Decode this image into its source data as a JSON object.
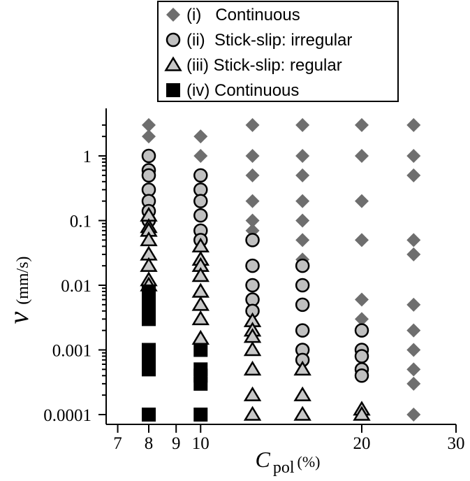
{
  "chart_data": {
    "type": "scatter",
    "title": "",
    "xlabel": {
      "symbol": "C",
      "subscript": "pol",
      "unit": "(%)"
    },
    "ylabel": {
      "symbol": "v",
      "unit": "(mm/s)"
    },
    "xscale": "log",
    "yscale": "log",
    "xlim": [
      6.5,
      30
    ],
    "ylim": [
      0.0001,
      3
    ],
    "grid": false,
    "legend_position": "top-center",
    "x_ticks": [
      {
        "value": 7,
        "label": "7"
      },
      {
        "value": 8,
        "label": "8"
      },
      {
        "value": 9,
        "label": "9"
      },
      {
        "value": 10,
        "label": "10"
      },
      {
        "value": 20,
        "label": "20"
      },
      {
        "value": 30,
        "label": "30"
      }
    ],
    "y_ticks": [
      {
        "value": 1,
        "label": "1"
      },
      {
        "value": 0.1,
        "label": "0.1"
      },
      {
        "value": 0.01,
        "label": "0.01"
      },
      {
        "value": 0.001,
        "label": "0.001"
      },
      {
        "value": 0.0001,
        "label": "0.0001"
      }
    ],
    "series": [
      {
        "name": "(i)   Continuous",
        "marker": "diamond",
        "color": "#6e6e6e",
        "points": [
          [
            8,
            3
          ],
          [
            8,
            2
          ],
          [
            10,
            2
          ],
          [
            10,
            1
          ],
          [
            10,
            0.5
          ],
          [
            12.5,
            3
          ],
          [
            12.5,
            1
          ],
          [
            12.5,
            0.5
          ],
          [
            12.5,
            0.2
          ],
          [
            12.5,
            0.1
          ],
          [
            12.5,
            0.07
          ],
          [
            15.5,
            3
          ],
          [
            15.5,
            1
          ],
          [
            15.5,
            0.5
          ],
          [
            15.5,
            0.2
          ],
          [
            15.5,
            0.1
          ],
          [
            15.5,
            0.05
          ],
          [
            15.5,
            0.025
          ],
          [
            20,
            3
          ],
          [
            20,
            1
          ],
          [
            20,
            0.2
          ],
          [
            20,
            0.05
          ],
          [
            20,
            0.006
          ],
          [
            20,
            0.003
          ],
          [
            25,
            3
          ],
          [
            25,
            1
          ],
          [
            25,
            0.5
          ],
          [
            25,
            0.05
          ],
          [
            25,
            0.03
          ],
          [
            25,
            0.005
          ],
          [
            25,
            0.002
          ],
          [
            25,
            0.001
          ],
          [
            25,
            0.0005
          ],
          [
            25,
            0.0003
          ],
          [
            25,
            0.0001
          ]
        ]
      },
      {
        "name": "(ii)  Stick-slip: irregular",
        "marker": "circle",
        "color": "#c0c0c0",
        "points": [
          [
            8,
            1
          ],
          [
            8,
            0.6
          ],
          [
            8,
            0.5
          ],
          [
            8,
            0.3
          ],
          [
            8,
            0.2
          ],
          [
            8,
            0.14
          ],
          [
            8,
            0.1
          ],
          [
            10,
            0.5
          ],
          [
            10,
            0.3
          ],
          [
            10,
            0.2
          ],
          [
            10,
            0.12
          ],
          [
            10,
            0.07
          ],
          [
            10,
            0.05
          ],
          [
            12.5,
            0.05
          ],
          [
            12.5,
            0.02
          ],
          [
            12.5,
            0.01
          ],
          [
            12.5,
            0.006
          ],
          [
            12.5,
            0.004
          ],
          [
            15.5,
            0.02
          ],
          [
            15.5,
            0.01
          ],
          [
            15.5,
            0.005
          ],
          [
            15.5,
            0.002
          ],
          [
            15.5,
            0.001
          ],
          [
            15.5,
            0.0007
          ],
          [
            20,
            0.002
          ],
          [
            20,
            0.001
          ],
          [
            20,
            0.0008
          ],
          [
            20,
            0.0005
          ],
          [
            20,
            0.0004
          ]
        ]
      },
      {
        "name": "(iii) Stick-slip: regular",
        "marker": "triangle",
        "color": "#c8c8c8",
        "points": [
          [
            8,
            0.12
          ],
          [
            8,
            0.08
          ],
          [
            8,
            0.07
          ],
          [
            8,
            0.05
          ],
          [
            8,
            0.03
          ],
          [
            8,
            0.02
          ],
          [
            8,
            0.012
          ],
          [
            8,
            0.01
          ],
          [
            10,
            0.04
          ],
          [
            10,
            0.025
          ],
          [
            10,
            0.02
          ],
          [
            10,
            0.014
          ],
          [
            10,
            0.008
          ],
          [
            10,
            0.005
          ],
          [
            10,
            0.003
          ],
          [
            10,
            0.0015
          ],
          [
            12.5,
            0.0028
          ],
          [
            12.5,
            0.002
          ],
          [
            12.5,
            0.0016
          ],
          [
            12.5,
            0.001
          ],
          [
            12.5,
            0.0005
          ],
          [
            12.5,
            0.0002
          ],
          [
            12.5,
            0.0001
          ],
          [
            15.5,
            0.0005
          ],
          [
            15.5,
            0.0002
          ],
          [
            15.5,
            0.0001
          ],
          [
            20,
            0.00012
          ],
          [
            20,
            0.0001
          ]
        ]
      },
      {
        "name": "(iv) Continuous",
        "marker": "square",
        "color": "#000000",
        "points": [
          [
            8,
            0.008
          ],
          [
            8,
            0.007
          ],
          [
            8,
            0.006
          ],
          [
            8,
            0.005
          ],
          [
            8,
            0.004
          ],
          [
            8,
            0.003
          ],
          [
            8,
            0.001
          ],
          [
            8,
            0.0008
          ],
          [
            8,
            0.0006
          ],
          [
            8,
            0.0005
          ],
          [
            8,
            0.0001
          ],
          [
            10,
            0.001
          ],
          [
            10,
            0.0005
          ],
          [
            10,
            0.0004
          ],
          [
            10,
            0.0003
          ],
          [
            10,
            0.0001
          ]
        ]
      }
    ]
  }
}
